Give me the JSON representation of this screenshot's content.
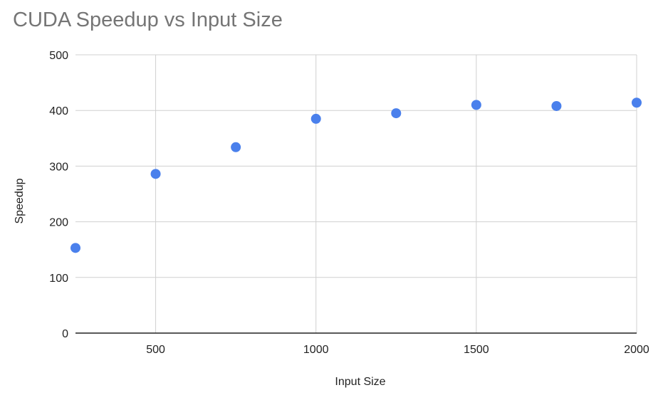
{
  "chart_data": {
    "type": "scatter",
    "title": "CUDA Speedup vs Input Size",
    "xlabel": "Input Size",
    "ylabel": "Speedup",
    "xlim": [
      250,
      2000
    ],
    "ylim": [
      0,
      500
    ],
    "xticks": [
      500,
      1000,
      1500,
      2000
    ],
    "yticks": [
      0,
      100,
      200,
      300,
      400,
      500
    ],
    "grid": true,
    "legend": "none",
    "point_color": "#4a80ec",
    "series": [
      {
        "points": [
          {
            "x": 250,
            "y": 153
          },
          {
            "x": 500,
            "y": 286
          },
          {
            "x": 750,
            "y": 334
          },
          {
            "x": 1000,
            "y": 385
          },
          {
            "x": 1250,
            "y": 395
          },
          {
            "x": 1500,
            "y": 410
          },
          {
            "x": 1750,
            "y": 408
          },
          {
            "x": 2000,
            "y": 414
          }
        ]
      }
    ]
  }
}
